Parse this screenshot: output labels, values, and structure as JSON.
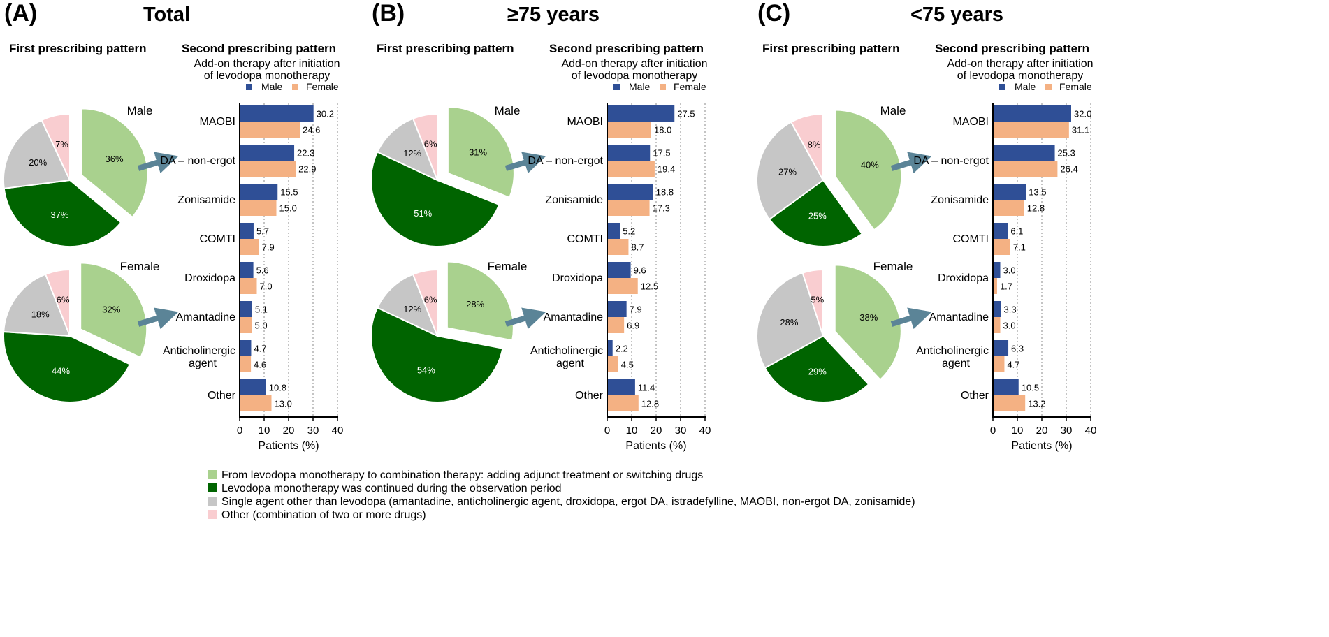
{
  "colors": {
    "combination": "#a9d18e",
    "continued": "#006400",
    "single_agent": "#c6c6c6",
    "other": "#f9cdd0",
    "male_bar": "#2f4f96",
    "female_bar": "#f4b183",
    "arrow": "#5b8497"
  },
  "chart_data": [
    {
      "type": "pie",
      "panel": "(A)",
      "title": "Total",
      "subtitle": "First prescribing pattern",
      "pies": [
        {
          "label": "Male",
          "slices": [
            {
              "key": "combination",
              "value": 36,
              "label": "36%"
            },
            {
              "key": "continued",
              "value": 37,
              "label": "37%"
            },
            {
              "key": "single_agent",
              "value": 20,
              "label": "20%"
            },
            {
              "key": "other",
              "value": 7,
              "label": "7%"
            }
          ]
        },
        {
          "label": "Female",
          "slices": [
            {
              "key": "combination",
              "value": 32,
              "label": "32%"
            },
            {
              "key": "continued",
              "value": 44,
              "label": "44%"
            },
            {
              "key": "single_agent",
              "value": 18,
              "label": "18%"
            },
            {
              "key": "other",
              "value": 6,
              "label": "6%"
            }
          ]
        }
      ]
    },
    {
      "type": "bar",
      "orientation": "horizontal",
      "panel": "(A)",
      "title": "Second prescribing pattern",
      "subtitle_lines": [
        "Add-on therapy after initiation",
        "of levodopa monotherapy"
      ],
      "categories": [
        "MAOBI",
        "DA – non-ergot",
        "Zonisamide",
        "COMTI",
        "Droxidopa",
        "Amantadine",
        "Anticholinergic agent",
        "Other"
      ],
      "series": [
        {
          "name": "Male",
          "values": [
            30.2,
            22.3,
            15.5,
            5.7,
            5.6,
            5.1,
            4.7,
            10.8
          ],
          "labels": [
            "30.2",
            "22.3",
            "15.5",
            "5.7",
            "5.6",
            "5.1",
            "4.7",
            "10.8"
          ]
        },
        {
          "name": "Female",
          "values": [
            24.6,
            22.9,
            15.0,
            7.9,
            7.0,
            5.0,
            4.6,
            13.0
          ],
          "labels": [
            "24.6",
            "22.9",
            "15.0",
            "7.9",
            "7.0",
            "5.0",
            "4.6",
            "13.0"
          ]
        }
      ],
      "xlabel": "Patients (%)",
      "xlim": [
        0,
        40
      ],
      "xticks": [
        "0",
        "10",
        "20",
        "30",
        "40"
      ]
    },
    {
      "type": "pie",
      "panel": "(B)",
      "title": "≥75 years",
      "subtitle": "First prescribing pattern",
      "pies": [
        {
          "label": "Male",
          "slices": [
            {
              "key": "combination",
              "value": 31,
              "label": "31%"
            },
            {
              "key": "continued",
              "value": 51,
              "label": "51%"
            },
            {
              "key": "single_agent",
              "value": 12,
              "label": "12%"
            },
            {
              "key": "other",
              "value": 6,
              "label": "6%"
            }
          ]
        },
        {
          "label": "Female",
          "slices": [
            {
              "key": "combination",
              "value": 28,
              "label": "28%"
            },
            {
              "key": "continued",
              "value": 54,
              "label": "54%"
            },
            {
              "key": "single_agent",
              "value": 12,
              "label": "12%"
            },
            {
              "key": "other",
              "value": 6,
              "label": "6%"
            }
          ]
        }
      ]
    },
    {
      "type": "bar",
      "orientation": "horizontal",
      "panel": "(B)",
      "title": "Second prescribing pattern",
      "subtitle_lines": [
        "Add-on therapy after initiation",
        "of levodopa monotherapy"
      ],
      "categories": [
        "MAOBI",
        "DA – non-ergot",
        "Zonisamide",
        "COMTI",
        "Droxidopa",
        "Amantadine",
        "Anticholinergic agent",
        "Other"
      ],
      "series": [
        {
          "name": "Male",
          "values": [
            27.5,
            17.5,
            18.8,
            5.2,
            9.6,
            7.9,
            2.2,
            11.4
          ],
          "labels": [
            "27.5",
            "17.5",
            "18.8",
            "5.2",
            "9.6",
            "7.9",
            "2.2",
            "11.4"
          ]
        },
        {
          "name": "Female",
          "values": [
            18.0,
            19.4,
            17.3,
            8.7,
            12.5,
            6.9,
            4.5,
            12.8
          ],
          "labels": [
            "18.0",
            "19.4",
            "17.3",
            "8.7",
            "12.5",
            "6.9",
            "4.5",
            "12.8"
          ]
        }
      ],
      "xlabel": "Patients (%)",
      "xlim": [
        0,
        40
      ],
      "xticks": [
        "0",
        "10",
        "20",
        "30",
        "40"
      ]
    },
    {
      "type": "pie",
      "panel": "(C)",
      "title": "<75 years",
      "subtitle": "First prescribing pattern",
      "pies": [
        {
          "label": "Male",
          "slices": [
            {
              "key": "combination",
              "value": 40,
              "label": "40%"
            },
            {
              "key": "continued",
              "value": 25,
              "label": "25%"
            },
            {
              "key": "single_agent",
              "value": 27,
              "label": "27%"
            },
            {
              "key": "other",
              "value": 8,
              "label": "8%"
            }
          ]
        },
        {
          "label": "Female",
          "slices": [
            {
              "key": "combination",
              "value": 38,
              "label": "38%"
            },
            {
              "key": "continued",
              "value": 29,
              "label": "29%"
            },
            {
              "key": "single_agent",
              "value": 28,
              "label": "28%"
            },
            {
              "key": "other",
              "value": 5,
              "label": "5%"
            }
          ]
        }
      ]
    },
    {
      "type": "bar",
      "orientation": "horizontal",
      "panel": "(C)",
      "title": "Second prescribing pattern",
      "subtitle_lines": [
        "Add-on therapy after initiation",
        "of levodopa monotherapy"
      ],
      "categories": [
        "MAOBI",
        "DA – non-ergot",
        "Zonisamide",
        "COMTI",
        "Droxidopa",
        "Amantadine",
        "Anticholinergic agent",
        "Other"
      ],
      "series": [
        {
          "name": "Male",
          "values": [
            32.0,
            25.3,
            13.5,
            6.1,
            3.0,
            3.3,
            6.3,
            10.5
          ],
          "labels": [
            "32.0",
            "25.3",
            "13.5",
            "6.1",
            "3.0",
            "3.3",
            "6.3",
            "10.5"
          ]
        },
        {
          "name": "Female",
          "values": [
            31.1,
            26.4,
            12.8,
            7.1,
            1.7,
            3.0,
            4.7,
            13.2
          ],
          "labels": [
            "31.1",
            "26.4",
            "12.8",
            "7.1",
            "1.7",
            "3.0",
            "4.7",
            "13.2"
          ]
        }
      ],
      "xlabel": "Patients (%)",
      "xlim": [
        0,
        40
      ],
      "xticks": [
        "0",
        "10",
        "20",
        "30",
        "40"
      ]
    }
  ],
  "legend": [
    {
      "key": "combination",
      "text": "From levodopa monotherapy to combination therapy: adding adjunct treatment or switching drugs"
    },
    {
      "key": "continued",
      "text": "Levodopa monotherapy was continued during the observation period"
    },
    {
      "key": "single_agent",
      "text": "Single agent other than levodopa (amantadine, anticholinergic agent, droxidopa, ergot DA, istradefylline, MAOBI, non-ergot DA, zonisamide)"
    },
    {
      "key": "other",
      "text": "Other (combination of two or more drugs)"
    }
  ]
}
